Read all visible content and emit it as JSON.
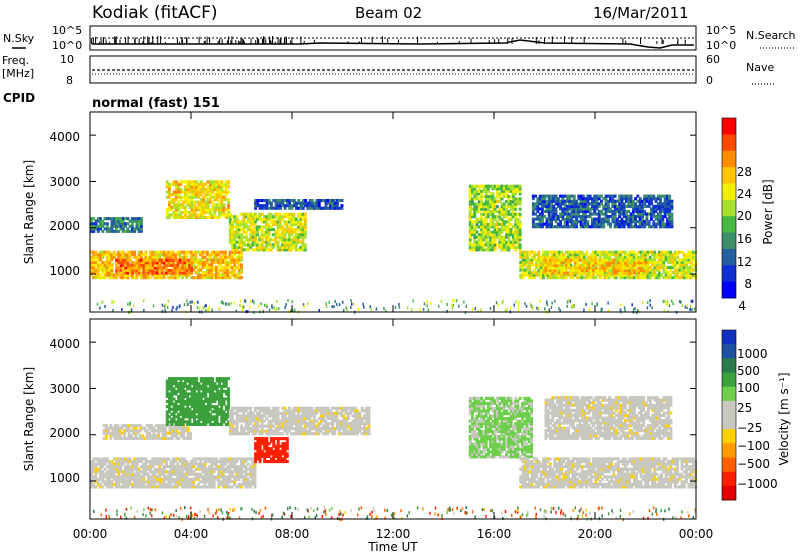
{
  "header": {
    "station": "Kodiak (fitACF)",
    "beam": "Beam 02",
    "date": "16/Mar/2011"
  },
  "noise_panel": {
    "left_label": "N.Sky",
    "right_label": "N.Search",
    "left_ticks": [
      "10^5",
      "10^0"
    ],
    "right_ticks": [
      "10^5",
      "10^0"
    ]
  },
  "freq_panel": {
    "left_label_1": "Freq.",
    "left_label_2": "[MHz]",
    "left_ticks": [
      "10",
      "8"
    ],
    "right_ticks": [
      "60",
      "0"
    ],
    "right_label": "Nave"
  },
  "cpid": {
    "label": "CPID",
    "value": "normal (fast) 151"
  },
  "time_axis": {
    "label": "Time UT",
    "ticks": [
      "00:00",
      "04:00",
      "08:00",
      "12:00",
      "16:00",
      "20:00",
      "00:00"
    ]
  },
  "power_panel": {
    "ylabel": "Slant Range [km]",
    "yticks": [
      "1000",
      "2000",
      "3000",
      "4000"
    ],
    "colorbar_label": "Power [dB]",
    "colorbar_ticks": [
      "28",
      "24",
      "20",
      "16",
      "12",
      "8",
      "4"
    ],
    "colors": [
      "#ff0000",
      "#ff4a00",
      "#ff8c00",
      "#ffc400",
      "#f3ef00",
      "#a8e030",
      "#47b843",
      "#3c8f6a",
      "#255fa0",
      "#1030d0",
      "#0000ff"
    ]
  },
  "velocity_panel": {
    "ylabel": "Slant Range [km]",
    "yticks": [
      "1000",
      "2000",
      "3000",
      "4000"
    ],
    "colorbar_label": "Velocity [m s⁻¹]",
    "colorbar_ticks": [
      "1000",
      "500",
      "100",
      "25",
      "−25",
      "−100",
      "−500",
      "−1000"
    ],
    "colors": [
      "#1030c0",
      "#2050a0",
      "#2a7a4a",
      "#3ca03c",
      "#6ed04a",
      "#c8c8c0",
      "#c8c8c0",
      "#ffd000",
      "#ff9a00",
      "#ff6000",
      "#ff2000",
      "#e00000"
    ]
  },
  "chart_data": [
    {
      "type": "heatmap",
      "title": "",
      "xlabel": "Time UT",
      "ylabel": "Slant Range [km]",
      "xlim": [
        "00:00",
        "24:00"
      ],
      "ylim": [
        180,
        4500
      ],
      "colorbar": "Power [dB]",
      "crange": [
        0,
        32
      ],
      "regions": [
        {
          "t": [
            0.0,
            6.0
          ],
          "range": [
            900,
            1500
          ],
          "power_dB": 22
        },
        {
          "t": [
            1.0,
            4.0
          ],
          "range": [
            1000,
            1300
          ],
          "power_dB": 26
        },
        {
          "t": [
            0.0,
            2.0
          ],
          "range": [
            1900,
            2200
          ],
          "power_dB": 8
        },
        {
          "t": [
            3.0,
            5.5
          ],
          "range": [
            2200,
            3000
          ],
          "power_dB": 20
        },
        {
          "t": [
            5.5,
            8.5
          ],
          "range": [
            1500,
            2300
          ],
          "power_dB": 18
        },
        {
          "t": [
            6.5,
            10.0
          ],
          "range": [
            2400,
            2600
          ],
          "power_dB": 6
        },
        {
          "t": [
            15.0,
            17.0
          ],
          "range": [
            1500,
            2900
          ],
          "power_dB": 16
        },
        {
          "t": [
            17.0,
            24.0
          ],
          "range": [
            900,
            1500
          ],
          "power_dB": 18
        },
        {
          "t": [
            18.0,
            22.0
          ],
          "range": [
            1000,
            1300
          ],
          "power_dB": 22
        },
        {
          "t": [
            17.5,
            23.0
          ],
          "range": [
            2000,
            2700
          ],
          "power_dB": 6
        }
      ]
    },
    {
      "type": "heatmap",
      "title": "",
      "xlabel": "Time UT",
      "ylabel": "Slant Range [km]",
      "xlim": [
        "00:00",
        "24:00"
      ],
      "ylim": [
        180,
        4500
      ],
      "colorbar": "Velocity [m s⁻¹]",
      "crange": [
        -1000,
        1000
      ],
      "regions": [
        {
          "t": [
            0.0,
            6.5
          ],
          "range": [
            850,
            1500
          ],
          "velocity_ms": 0
        },
        {
          "t": [
            0.5,
            4.0
          ],
          "range": [
            1900,
            2200
          ],
          "velocity_ms": 0
        },
        {
          "t": [
            3.0,
            5.5
          ],
          "range": [
            2200,
            3200
          ],
          "velocity_ms": 150
        },
        {
          "t": [
            6.5,
            7.8
          ],
          "range": [
            1400,
            1900
          ],
          "velocity_ms": -300
        },
        {
          "t": [
            5.5,
            11.0
          ],
          "range": [
            2000,
            2600
          ],
          "velocity_ms": 0
        },
        {
          "t": [
            15.0,
            17.5
          ],
          "range": [
            1500,
            2800
          ],
          "velocity_ms": 60
        },
        {
          "t": [
            17.0,
            24.0
          ],
          "range": [
            850,
            1500
          ],
          "velocity_ms": 0
        },
        {
          "t": [
            18.0,
            23.0
          ],
          "range": [
            1900,
            2800
          ],
          "velocity_ms": 0
        }
      ]
    }
  ]
}
